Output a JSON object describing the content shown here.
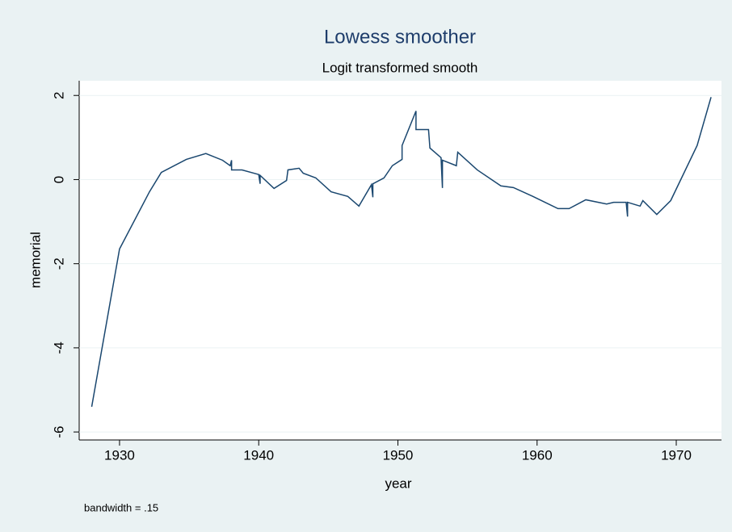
{
  "chart_data": {
    "type": "line",
    "title": "Lowess smoother",
    "subtitle": "Logit transformed smooth",
    "x_label": "year",
    "y_label": "memorial",
    "note": "bandwidth = .15",
    "x": [
      1928,
      1930,
      1932.15,
      1933.0,
      1934.8,
      1936.2,
      1937.4,
      1937.95,
      1938.05,
      1938.05,
      1938.8,
      1940,
      1940.1,
      1940.1,
      1941.1,
      1942,
      1942.1,
      1942.9,
      1943.2,
      1944.1,
      1945.2,
      1946.4,
      1947.2,
      1948.1,
      1948.2,
      1948.2,
      1949.0,
      1949.6,
      1950.3,
      1950.3,
      1951.3,
      1951.3,
      1952.2,
      1952.3,
      1953.1,
      1953.2,
      1953.2,
      1954.2,
      1954.3,
      1955.7,
      1957.4,
      1958.3,
      1959.7,
      1961.5,
      1962.3,
      1963.5,
      1965.0,
      1965.5,
      1966.4,
      1966.5,
      1966.5,
      1967.4,
      1967.6,
      1968.6,
      1969.6,
      1971.5,
      1972.5
    ],
    "series": [
      {
        "name": "memorial",
        "color": "#1a476f",
        "values": [
          -5.4,
          -1.65,
          -0.29,
          0.17,
          0.48,
          0.62,
          0.46,
          0.33,
          0.46,
          0.23,
          0.23,
          0.12,
          -0.1,
          0.1,
          -0.21,
          -0.02,
          0.23,
          0.27,
          0.15,
          0.04,
          -0.29,
          -0.4,
          -0.63,
          -0.12,
          -0.42,
          -0.1,
          0.04,
          0.33,
          0.48,
          0.81,
          1.63,
          1.19,
          1.19,
          0.75,
          0.52,
          -0.2,
          0.46,
          0.33,
          0.65,
          0.23,
          -0.15,
          -0.19,
          -0.4,
          -0.69,
          -0.69,
          -0.48,
          -0.58,
          -0.54,
          -0.54,
          -0.88,
          -0.54,
          -0.63,
          -0.5,
          -0.83,
          -0.5,
          0.81,
          1.96
        ]
      }
    ],
    "xlim": [
      1927.1,
      1973.25
    ],
    "ylim": [
      -6.19,
      2.35
    ],
    "xticks": [
      1930,
      1940,
      1950,
      1960,
      1970
    ],
    "yticks": [
      -6,
      -4,
      -2,
      0,
      2
    ],
    "grid": true
  }
}
